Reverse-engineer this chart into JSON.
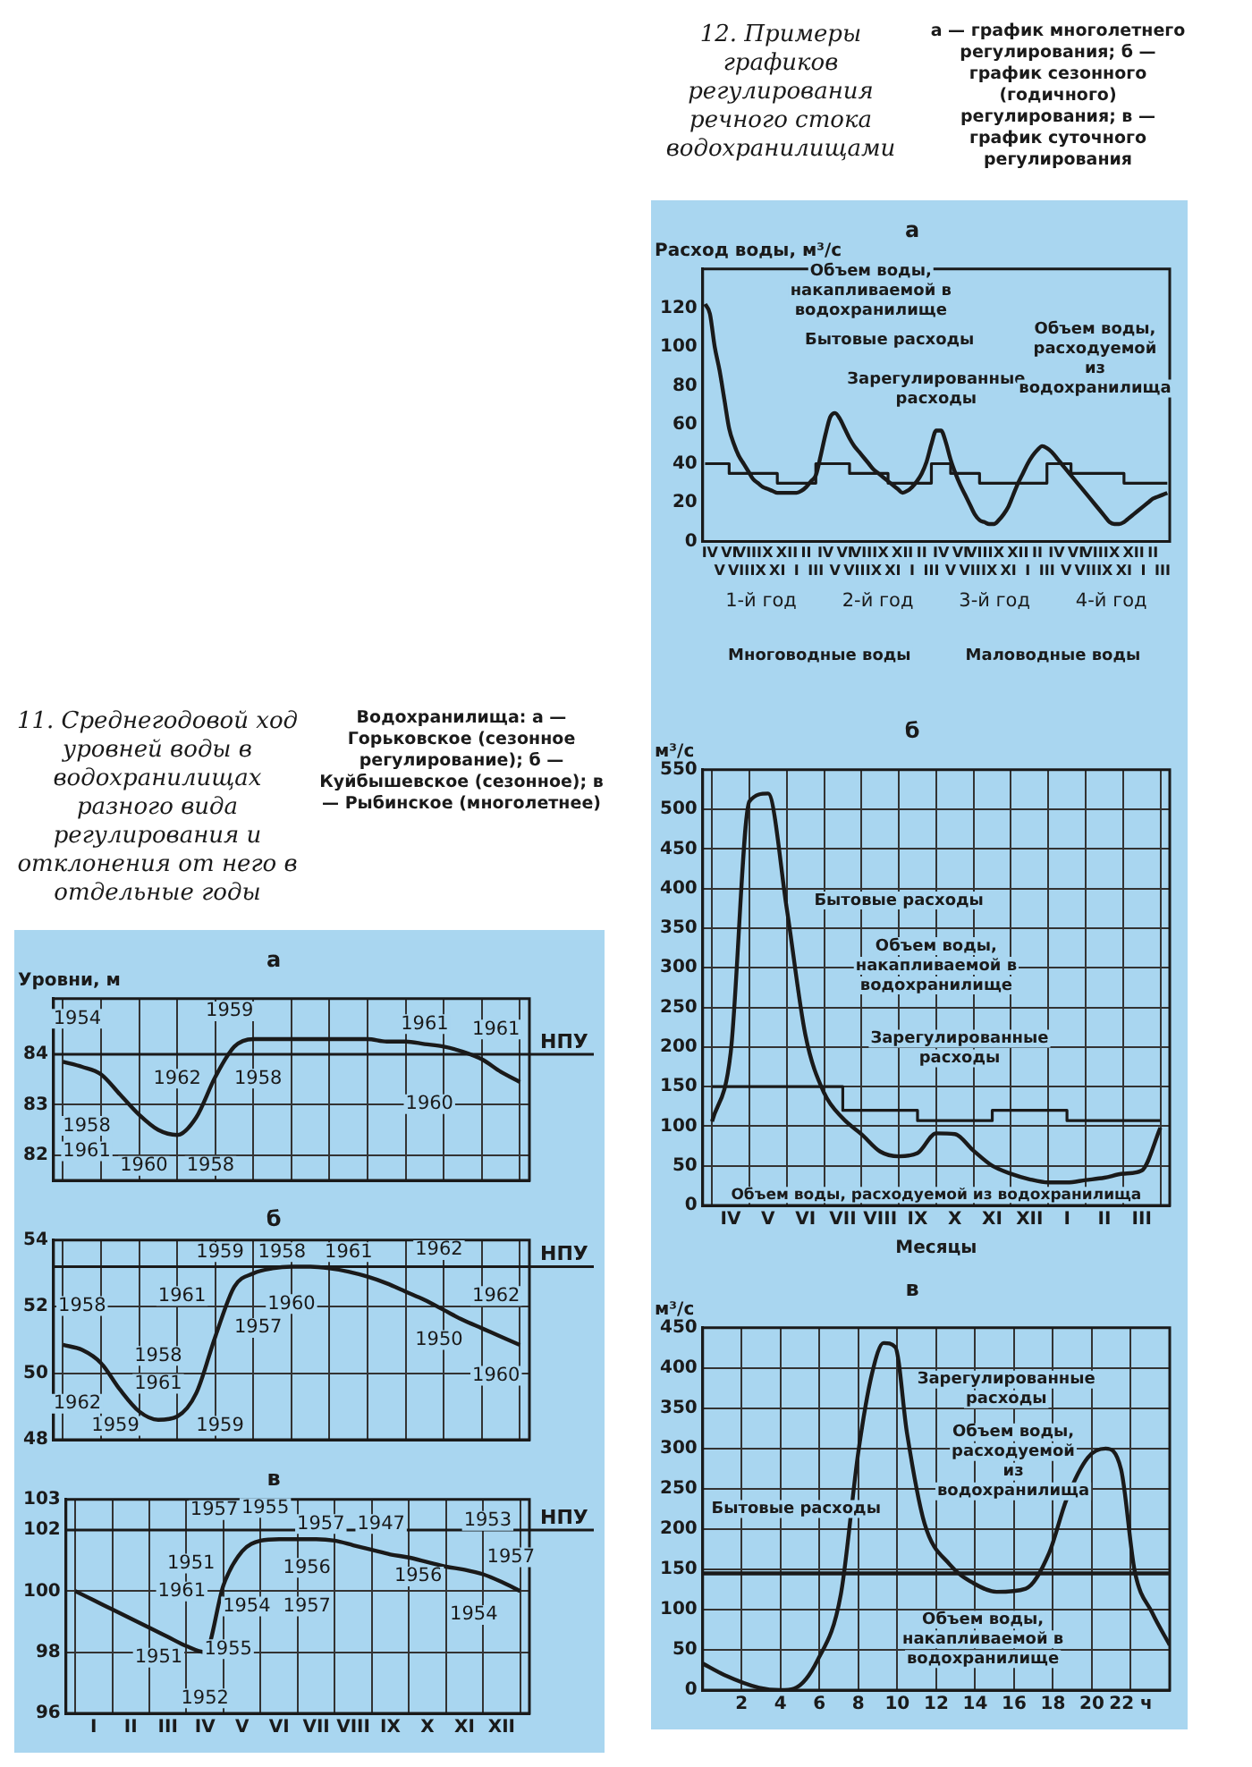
{
  "chart_data": [
    {
      "type": "other",
      "title": "11. Среднегодовой ход уровней воды в водохранилищах разного вида регулирования и отклонения от него в отдельные годы",
      "annotations": [
        "Водохранилища: а — Горьковское (сезонное регулирование); б — Куйбышевское (сезонное); в — Рыбинское (многолетнее)"
      ]
    },
    {
      "type": "line",
      "title": "а",
      "ylabel": "Уровни, м",
      "tick_labels": "y",
      "grid": true,
      "ylim": [
        81.5,
        85.1
      ],
      "yticks": [
        82,
        83,
        84
      ],
      "categories": [
        null,
        null,
        null,
        null,
        null,
        null,
        null,
        null,
        null,
        null,
        null,
        null,
        null,
        null,
        null,
        null,
        null,
        null,
        null,
        null,
        null,
        null,
        null,
        null,
        null
      ],
      "series": [
        {
          "color": "#1a1a1a",
          "values": [
            83.85,
            83.75,
            83.6,
            83.2,
            82.8,
            82.5,
            82.4,
            82.75,
            83.55,
            84.15,
            84.3,
            84.3,
            84.3,
            84.3,
            84.3,
            84.3,
            84.3,
            84.25,
            84.25,
            84.2,
            84.15,
            84.05,
            83.9,
            83.65,
            83.45
          ]
        }
      ],
      "ref_lines": [
        {
          "axis": "y",
          "value": 84,
          "label": "НПУ"
        }
      ],
      "annotations": [
        "1954",
        "1958",
        "1961",
        "1960",
        "1958",
        "1962",
        "1959",
        "1958",
        "1961",
        "1960",
        "1961"
      ]
    },
    {
      "type": "line",
      "title": "б",
      "tick_labels": "y",
      "grid": true,
      "ylim": [
        48,
        54
      ],
      "yticks": [
        48,
        50,
        52,
        54
      ],
      "categories": [
        null,
        null,
        null,
        null,
        null,
        null,
        null,
        null,
        null,
        null,
        null,
        null,
        null,
        null,
        null,
        null,
        null,
        null,
        null,
        null,
        null,
        null,
        null,
        null,
        null
      ],
      "series": [
        {
          "color": "#1a1a1a",
          "values": [
            50.85,
            50.7,
            50.3,
            49.5,
            48.85,
            48.6,
            48.7,
            49.4,
            51.1,
            52.6,
            53.0,
            53.15,
            53.2,
            53.2,
            53.15,
            53.05,
            52.9,
            52.7,
            52.45,
            52.2,
            51.9,
            51.6,
            51.35,
            51.1,
            50.85
          ]
        }
      ],
      "ref_lines": [
        {
          "axis": "y",
          "value": 53.2,
          "label": "НПУ"
        }
      ],
      "annotations": [
        "1958",
        "1962",
        "1958",
        "1961",
        "1959",
        "1959",
        "1961",
        "1959",
        "1958",
        "1961",
        "1960",
        "1957",
        "1962",
        "1950",
        "1962",
        "1960"
      ]
    },
    {
      "type": "line",
      "title": "в",
      "grid": true,
      "ylim": [
        96,
        103
      ],
      "yticks": [
        96,
        98,
        100,
        102,
        103
      ],
      "categories": [
        null,
        "I",
        null,
        "II",
        null,
        "III",
        null,
        "IV",
        null,
        "V",
        null,
        "VI",
        null,
        "VII",
        null,
        "VIII",
        null,
        "IX",
        null,
        "X",
        null,
        "XI",
        null,
        "XII",
        null
      ],
      "series": [
        {
          "color": "#1a1a1a",
          "values": [
            100,
            99.7,
            99.4,
            99.1,
            98.8,
            98.5,
            98.2,
            98.0,
            100.2,
            101.3,
            101.65,
            101.7,
            101.7,
            101.7,
            101.65,
            101.5,
            101.35,
            101.2,
            101.1,
            100.95,
            100.8,
            100.7,
            100.55,
            100.3,
            100.0
          ]
        }
      ],
      "ref_lines": [
        {
          "axis": "y",
          "value": 102,
          "label": "НПУ"
        }
      ],
      "annotations": [
        "1957",
        "1955",
        "1957",
        "1947",
        "1951",
        "1956",
        "1961",
        "1954",
        "1957",
        "1951",
        "1955",
        "1952",
        "1953",
        "1956",
        "1957",
        "1954"
      ]
    },
    {
      "type": "other",
      "title": "12. Примеры графиков регулирования речного стока водохранилищами",
      "annotations": [
        "а — график многолетнего регулирования; б — график сезонного (годичного) регулирования; в — график суточного регулирования"
      ]
    },
    {
      "type": "line",
      "title": "а",
      "ylabel": "Расход воды, м³/с",
      "ylim": [
        0,
        140
      ],
      "yticks": [
        0,
        20,
        40,
        60,
        80,
        100,
        120
      ],
      "categories": [
        null,
        "IV",
        null,
        "V",
        null,
        "VI",
        null,
        "VII",
        null,
        "VIII",
        null,
        "IX",
        null,
        "X",
        null,
        "XI",
        null,
        "XII",
        null,
        "I",
        null,
        "II",
        null,
        "III",
        null,
        "IV",
        null,
        "V",
        null,
        "VI",
        null,
        "VII",
        null,
        "VIII",
        null,
        "IX",
        null,
        "X",
        null,
        "XI",
        null,
        "XII",
        null,
        "I",
        null,
        "II",
        null,
        "III",
        null,
        "IV",
        null,
        "V",
        null,
        "VI",
        null,
        "VII",
        null,
        "VIII",
        null,
        "IX",
        null,
        "X",
        null,
        "XI",
        null,
        "XII",
        null,
        "I",
        null,
        "II",
        null,
        "III",
        null,
        "IV",
        null,
        "V",
        null,
        "VI",
        null,
        "VII",
        null,
        "VIII",
        null,
        "IX",
        null,
        "X",
        null,
        "XI",
        null,
        "XII",
        null,
        "I",
        null,
        "II",
        null,
        "III",
        null
      ],
      "series": [
        {
          "type": "line",
          "color": "#1a1a1a",
          "values": [
            122,
            117,
            100,
            88,
            73,
            58,
            50,
            44,
            40,
            36,
            32,
            30,
            28,
            27,
            26,
            25,
            25,
            25,
            25,
            25,
            26,
            28,
            31,
            34,
            44,
            55,
            64,
            66,
            63,
            58,
            53,
            49,
            46,
            43,
            40,
            37,
            35,
            33,
            31,
            29,
            27,
            25,
            26,
            28,
            31,
            35,
            41,
            50,
            57,
            57,
            51,
            42,
            35,
            29,
            24,
            19,
            14,
            11,
            10,
            9,
            9,
            11,
            14,
            18,
            24,
            30,
            35,
            40,
            44,
            47,
            49,
            48,
            46,
            43,
            40,
            37,
            34,
            31,
            28,
            25,
            22,
            19,
            16,
            13,
            10,
            9,
            9,
            10,
            12,
            14,
            16,
            18,
            20,
            22,
            23,
            24,
            25
          ]
        },
        {
          "type": "step",
          "color": "#1a1a1a",
          "values": [
            40,
            40,
            40,
            40,
            40,
            40,
            35,
            35,
            35,
            35,
            35,
            35,
            35,
            35,
            35,
            35,
            30,
            30,
            30,
            30,
            30,
            30,
            30,
            30,
            40,
            40,
            40,
            40,
            40,
            40,
            40,
            35,
            35,
            35,
            35,
            35,
            35,
            35,
            35,
            30,
            30,
            30,
            30,
            30,
            30,
            30,
            30,
            30,
            40,
            40,
            40,
            40,
            35,
            35,
            35,
            35,
            35,
            35,
            30,
            30,
            30,
            30,
            30,
            30,
            30,
            30,
            30,
            30,
            30,
            30,
            30,
            30,
            40,
            40,
            40,
            40,
            40,
            35,
            35,
            35,
            35,
            35,
            35,
            35,
            35,
            35,
            35,
            35,
            30,
            30,
            30,
            30,
            30,
            30,
            30,
            30,
            30
          ]
        }
      ],
      "annotations": [
        "Объем воды, накапливаемой в водохранилище",
        "Бытовые расходы",
        "Зарегулированные расходы",
        "Объем воды, расходуемой из водохранилища",
        "1-й год",
        "2-й год",
        "3-й год",
        "4-й год",
        "Многоводные воды",
        "Маловодные воды"
      ]
    },
    {
      "type": "line",
      "title": "б",
      "ylabel": "м³/с",
      "xlabel": "Месяцы",
      "grid": true,
      "ylim": [
        0,
        550
      ],
      "yticks": [
        0,
        50,
        100,
        150,
        200,
        250,
        300,
        350,
        400,
        450,
        500,
        550
      ],
      "categories": [
        null,
        "IV",
        null,
        "V",
        null,
        "VI",
        null,
        "VII",
        null,
        "VIII",
        null,
        "IX",
        null,
        "X",
        null,
        "XI",
        null,
        "XII",
        null,
        "I",
        null,
        "II",
        null,
        "III",
        null
      ],
      "series": [
        {
          "type": "line",
          "color": "#1a1a1a",
          "values": [
            106,
            193,
            510,
            520,
            375,
            215,
            142,
            110,
            90,
            68,
            62,
            66,
            91,
            90,
            69,
            50,
            40,
            33,
            29,
            29,
            32,
            35,
            40,
            44,
            98
          ]
        },
        {
          "type": "step",
          "color": "#1a1a1a",
          "values": [
            150,
            150,
            150,
            150,
            150,
            150,
            150,
            150,
            120,
            120,
            120,
            120,
            107,
            107,
            107,
            107,
            120,
            120,
            120,
            120,
            107,
            107,
            107,
            107,
            107
          ]
        }
      ],
      "annotations": [
        "Бытовые расходы",
        "Объем воды, накапливаемой в водохранилище",
        "Зарегулированные расходы",
        "Объем воды, расходуемой из водохранилища"
      ]
    },
    {
      "type": "line",
      "title": "в",
      "ylabel": "м³/с",
      "grid": true,
      "xlim": [
        0,
        24
      ],
      "ylim": [
        0,
        450
      ],
      "yticks": [
        0,
        50,
        100,
        150,
        200,
        250,
        300,
        350,
        400,
        450
      ],
      "xticks": [
        2,
        4,
        6,
        8,
        10,
        12,
        14,
        16,
        18,
        20,
        {
          "value": 22,
          "label": "22 ч"
        }
      ],
      "series": [
        {
          "type": "line",
          "color": "#1a1a1a",
          "x": [
            0,
            1.1,
            2.9,
            4,
            4.7,
            5.9,
            7.1,
            8,
            8.7,
            9.3,
            9.9,
            10.5,
            11.4,
            12.7,
            13.9,
            15.1,
            16.6,
            17.8,
            18.7,
            19.8,
            20.7,
            21.5,
            22.2,
            23.1,
            24
          ],
          "values": [
            33,
            19,
            3,
            0,
            2,
            37,
            119,
            296,
            393,
            431,
            426,
            319,
            207,
            156,
            133,
            122,
            126,
            170,
            237,
            289,
            300,
            274,
            148,
            96,
            56
          ]
        },
        {
          "type": "line",
          "color": "#1a1a1a",
          "x": [
            0,
            24
          ],
          "values": [
            145,
            145
          ]
        }
      ],
      "annotations": [
        "Зарегулированные расходы",
        "Объем воды, расходуемой из водохранилища",
        "Бытовые расходы",
        "Объем воды, накапливаемой в водохранилище"
      ]
    }
  ]
}
